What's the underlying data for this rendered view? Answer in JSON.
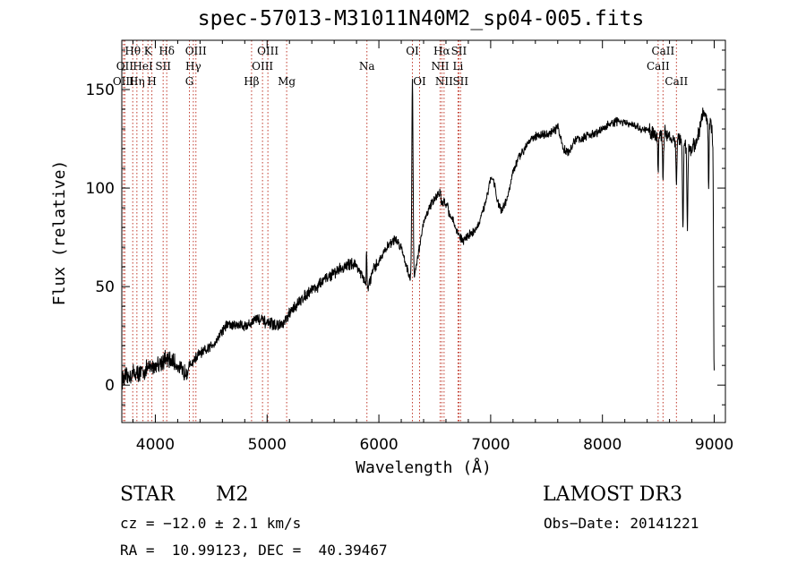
{
  "title": "spec-57013-M31011N40M2_sp04-005.fits",
  "chart_data": {
    "type": "line",
    "xlabel": "Wavelength (Å)",
    "ylabel": "Flux (relative)",
    "xlim": [
      3700,
      9100
    ],
    "ylim": [
      -19,
      175
    ],
    "xticks": [
      4000,
      5000,
      6000,
      7000,
      8000,
      9000
    ],
    "yticks": [
      0,
      50,
      100,
      150
    ],
    "series": [
      {
        "name": "spectrum",
        "anchors": [
          [
            3700,
            3
          ],
          [
            3750,
            4
          ],
          [
            3800,
            6
          ],
          [
            3850,
            6
          ],
          [
            3900,
            7
          ],
          [
            3950,
            9
          ],
          [
            4000,
            10
          ],
          [
            4050,
            12
          ],
          [
            4100,
            13
          ],
          [
            4150,
            12
          ],
          [
            4200,
            10
          ],
          [
            4250,
            6
          ],
          [
            4300,
            9
          ],
          [
            4350,
            13
          ],
          [
            4400,
            16
          ],
          [
            4450,
            17
          ],
          [
            4500,
            20
          ],
          [
            4550,
            23
          ],
          [
            4600,
            28
          ],
          [
            4650,
            31
          ],
          [
            4700,
            30
          ],
          [
            4750,
            31
          ],
          [
            4800,
            30
          ],
          [
            4850,
            31
          ],
          [
            4900,
            34
          ],
          [
            4950,
            33
          ],
          [
            5000,
            31
          ],
          [
            5050,
            31
          ],
          [
            5100,
            30
          ],
          [
            5150,
            31
          ],
          [
            5200,
            36
          ],
          [
            5250,
            40
          ],
          [
            5300,
            43
          ],
          [
            5350,
            46
          ],
          [
            5400,
            49
          ],
          [
            5450,
            50
          ],
          [
            5500,
            53
          ],
          [
            5550,
            55
          ],
          [
            5600,
            57
          ],
          [
            5650,
            59
          ],
          [
            5700,
            60
          ],
          [
            5750,
            62
          ],
          [
            5800,
            61
          ],
          [
            5850,
            55
          ],
          [
            5900,
            49
          ],
          [
            5950,
            58
          ],
          [
            6000,
            63
          ],
          [
            6050,
            68
          ],
          [
            6100,
            72
          ],
          [
            6150,
            74
          ],
          [
            6200,
            70
          ],
          [
            6250,
            60
          ],
          [
            6300,
            50
          ],
          [
            6350,
            66
          ],
          [
            6400,
            82
          ],
          [
            6450,
            90
          ],
          [
            6500,
            95
          ],
          [
            6550,
            98
          ],
          [
            6600,
            90
          ],
          [
            6650,
            85
          ],
          [
            6700,
            78
          ],
          [
            6750,
            73
          ],
          [
            6800,
            76
          ],
          [
            6850,
            78
          ],
          [
            6900,
            82
          ],
          [
            6950,
            92
          ],
          [
            7000,
            105
          ],
          [
            7030,
            104
          ],
          [
            7060,
            93
          ],
          [
            7100,
            88
          ],
          [
            7150,
            95
          ],
          [
            7200,
            108
          ],
          [
            7250,
            115
          ],
          [
            7300,
            120
          ],
          [
            7350,
            125
          ],
          [
            7400,
            126
          ],
          [
            7450,
            127
          ],
          [
            7500,
            127
          ],
          [
            7550,
            128
          ],
          [
            7600,
            131
          ],
          [
            7650,
            120
          ],
          [
            7700,
            118
          ],
          [
            7750,
            124
          ],
          [
            7800,
            125
          ],
          [
            7850,
            126
          ],
          [
            7900,
            127
          ],
          [
            7950,
            128
          ],
          [
            8000,
            130
          ],
          [
            8050,
            132
          ],
          [
            8100,
            133
          ],
          [
            8150,
            134
          ],
          [
            8200,
            133
          ],
          [
            8250,
            132
          ],
          [
            8300,
            131
          ],
          [
            8350,
            130
          ],
          [
            8400,
            129
          ],
          [
            8450,
            128
          ],
          [
            8500,
            128
          ],
          [
            8550,
            128
          ],
          [
            8600,
            126
          ],
          [
            8650,
            125
          ],
          [
            8700,
            124
          ],
          [
            8750,
            121
          ],
          [
            8800,
            120
          ],
          [
            8850,
            125
          ],
          [
            8900,
            138
          ],
          [
            8950,
            135
          ],
          [
            9000,
            125
          ]
        ],
        "features": [
          [
            4230,
            0,
            20
          ],
          [
            5890,
            18,
            4
          ],
          [
            6300,
            105,
            8
          ],
          [
            6563,
            -4,
            10
          ],
          [
            6610,
            4,
            10
          ],
          [
            8498,
            -20,
            6
          ],
          [
            8542,
            -25,
            6
          ],
          [
            8662,
            -22,
            6
          ],
          [
            8720,
            -45,
            6
          ],
          [
            8760,
            -40,
            6
          ],
          [
            8950,
            -35,
            5
          ],
          [
            9000,
            -120,
            8
          ]
        ]
      }
    ],
    "lines": [
      {
        "label": "Hθ",
        "x": 3798,
        "row": 0
      },
      {
        "label": "OII",
        "x": 3727,
        "row": 1
      },
      {
        "label": "OIII",
        "x": 3715,
        "row": 2
      },
      {
        "label": "Hη",
        "x": 3835,
        "row": 2
      },
      {
        "label": "HeI",
        "x": 3889,
        "row": 1
      },
      {
        "label": "K",
        "x": 3934,
        "row": 0
      },
      {
        "label": "H",
        "x": 3969,
        "row": 2
      },
      {
        "label": "SII",
        "x": 4070,
        "row": 1
      },
      {
        "label": "Hδ",
        "x": 4102,
        "row": 0
      },
      {
        "label": "OIII",
        "x": 4363,
        "row": 0
      },
      {
        "label": "Hγ",
        "x": 4340,
        "row": 1
      },
      {
        "label": "G",
        "x": 4305,
        "row": 2
      },
      {
        "label": "Hβ",
        "x": 4861,
        "row": 2
      },
      {
        "label": "OIII",
        "x": 5007,
        "row": 0
      },
      {
        "label": "OIII",
        "x": 4959,
        "row": 1
      },
      {
        "label": "Mg",
        "x": 5175,
        "row": 2
      },
      {
        "label": "Na",
        "x": 5893,
        "row": 1
      },
      {
        "label": "OI",
        "x": 6300,
        "row": 0
      },
      {
        "label": "OI",
        "x": 6364,
        "row": 2
      },
      {
        "label": "Hα",
        "x": 6563,
        "row": 0
      },
      {
        "label": "NII",
        "x": 6548,
        "row": 1
      },
      {
        "label": "NII",
        "x": 6583,
        "row": 2
      },
      {
        "label": "SII",
        "x": 6716,
        "row": 0
      },
      {
        "label": "Li",
        "x": 6708,
        "row": 1
      },
      {
        "label": "SII",
        "x": 6731,
        "row": 2
      },
      {
        "label": "CaII",
        "x": 8542,
        "row": 0
      },
      {
        "label": "CaII",
        "x": 8498,
        "row": 1
      },
      {
        "label": "CaII",
        "x": 8662,
        "row": 2
      }
    ]
  },
  "info": {
    "object_class": "STAR",
    "subclass": "M2",
    "survey": "LAMOST DR3",
    "cz": "cz = −12.0 ± 2.1 km/s",
    "obs_date": "Obs−Date: 20141221",
    "coords": "RA =  10.99123, DEC =  40.39467"
  }
}
